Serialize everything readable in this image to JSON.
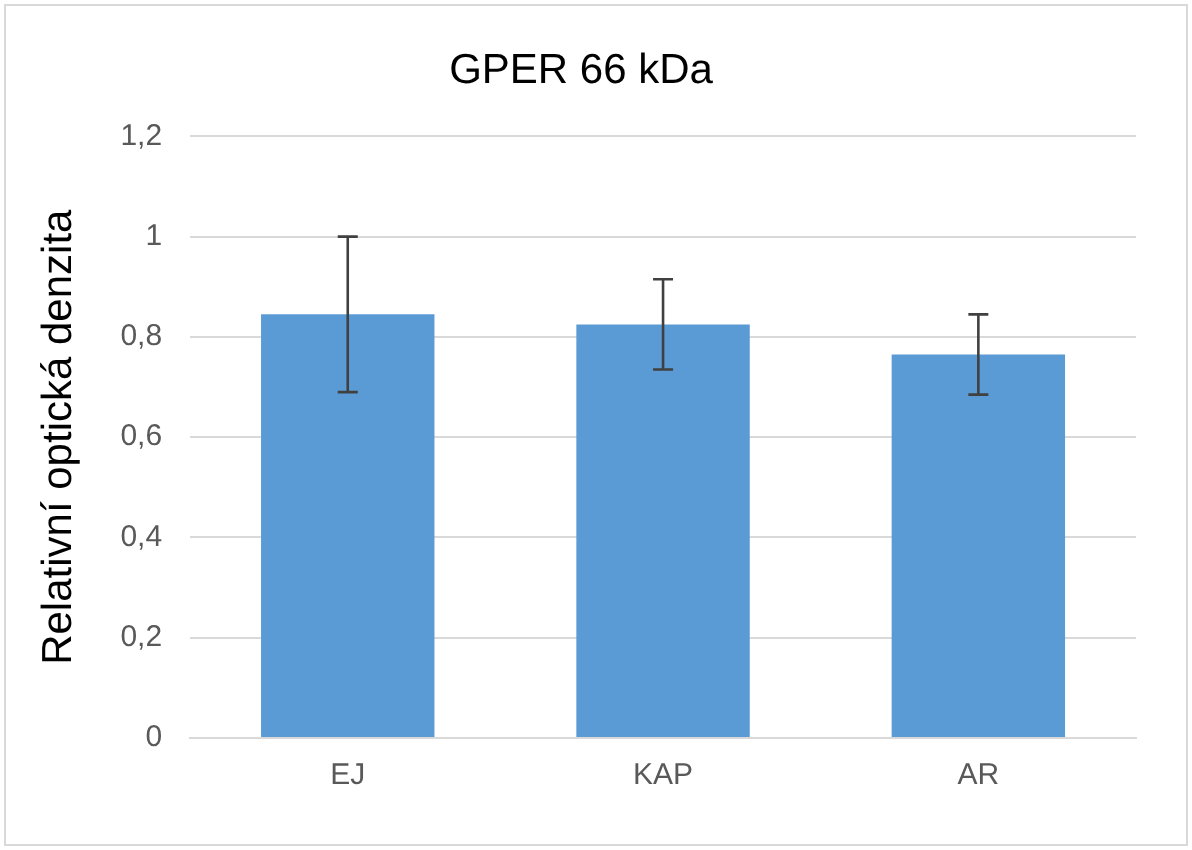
{
  "chart_data": {
    "type": "bar",
    "title": "GPER 66 kDa",
    "ylabel": "Relativní optická denzita",
    "categories": [
      "EJ",
      "KAP",
      "AR"
    ],
    "values": [
      0.845,
      0.825,
      0.765
    ],
    "errors": [
      0.155,
      0.09,
      0.08
    ],
    "color": "#5b9bd5",
    "ylim": [
      0,
      1.2
    ],
    "yticks": [
      {
        "value": 0,
        "label": "0"
      },
      {
        "value": 0.2,
        "label": "0,2"
      },
      {
        "value": 0.4,
        "label": "0,4"
      },
      {
        "value": 0.6,
        "label": "0,6"
      },
      {
        "value": 0.8,
        "label": "0,8"
      },
      {
        "value": 1,
        "label": "1"
      },
      {
        "value": 1.2,
        "label": "1,2"
      }
    ],
    "grid": "y",
    "legend": false
  }
}
